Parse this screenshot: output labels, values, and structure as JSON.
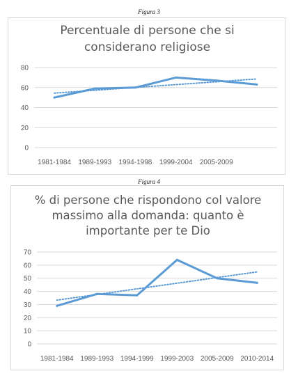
{
  "figures": [
    {
      "caption": "Figura 3"
    },
    {
      "caption": "Figura 4"
    }
  ],
  "colors": {
    "series": "#5b9bd5",
    "grid": "#d9d9d9",
    "text": "#595959"
  },
  "chart_data": [
    {
      "type": "line",
      "title": "Percentuale di persone che si considerano religiose",
      "title_lines": [
        "Percentuale di persone che si",
        "considerano religiose"
      ],
      "categories": [
        "1981-1984",
        "1989-1993",
        "1994-1998",
        "1999-2004",
        "2005-2009",
        ""
      ],
      "series": [
        {
          "values": [
            50,
            59,
            60,
            70,
            67,
            63
          ]
        }
      ],
      "trendline": {
        "type": "linear",
        "style": "dotted"
      },
      "yticks": [
        0,
        20,
        40,
        60,
        80
      ],
      "ylim": [
        0,
        80
      ],
      "grid": true,
      "legend": "none"
    },
    {
      "type": "line",
      "title": "% di persone che rispondono col valore massimo alla domanda: quanto è importante per te Dio",
      "title_lines": [
        "% di persone che rispondono col valore",
        "massimo alla domanda: quanto è",
        "importante per te Dio"
      ],
      "categories": [
        "1981-1984",
        "1989-1993",
        "1994-1999",
        "1999-2003",
        "2005-2009",
        "2010-2014"
      ],
      "series": [
        {
          "values": [
            29,
            38,
            37,
            64,
            50,
            46.5
          ]
        }
      ],
      "trendline": {
        "type": "linear",
        "style": "dotted"
      },
      "yticks": [
        0,
        10,
        20,
        30,
        40,
        50,
        60,
        70
      ],
      "ylim": [
        0,
        70
      ],
      "grid": true,
      "legend": "none"
    }
  ]
}
